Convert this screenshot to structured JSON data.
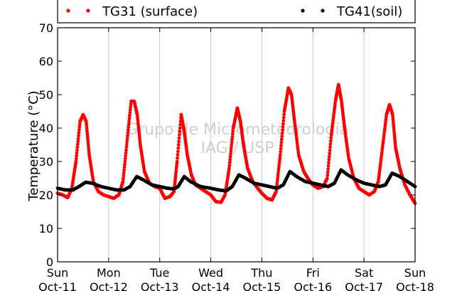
{
  "chart_data": {
    "type": "scatter",
    "ylabel": "Temperature (°C)",
    "xlabel": "",
    "ylim": [
      0,
      70
    ],
    "xlim": [
      "Oct-11",
      "Oct-18"
    ],
    "yticks": [
      0,
      10,
      20,
      30,
      40,
      50,
      60,
      70
    ],
    "xticks": [
      {
        "day": "Sun",
        "date": "Oct-11"
      },
      {
        "day": "Mon",
        "date": "Oct-12"
      },
      {
        "day": "Tue",
        "date": "Oct-13"
      },
      {
        "day": "Wed",
        "date": "Oct-14"
      },
      {
        "day": "Thu",
        "date": "Oct-15"
      },
      {
        "day": "Fri",
        "date": "Oct-16"
      },
      {
        "day": "Sat",
        "date": "Oct-17"
      },
      {
        "day": "Sun",
        "date": "Oct-18"
      }
    ],
    "grid": "vertical",
    "legend_position": "top",
    "watermark": [
      "Grupo de Micrometeorologia",
      "IAG / USP"
    ],
    "series": [
      {
        "name": "TG31 (surface)",
        "color": "#ff0000",
        "x_unit": "day",
        "points": [
          [
            0.0,
            20.5
          ],
          [
            0.1,
            20.0
          ],
          [
            0.2,
            19.2
          ],
          [
            0.28,
            22.0
          ],
          [
            0.36,
            30.0
          ],
          [
            0.44,
            42.0
          ],
          [
            0.5,
            44.0
          ],
          [
            0.56,
            42.0
          ],
          [
            0.62,
            32.0
          ],
          [
            0.7,
            24.0
          ],
          [
            0.8,
            21.0
          ],
          [
            0.9,
            20.0
          ],
          [
            1.0,
            19.5
          ],
          [
            1.1,
            19.0
          ],
          [
            1.2,
            20.0
          ],
          [
            1.28,
            24.0
          ],
          [
            1.36,
            36.0
          ],
          [
            1.44,
            48.0
          ],
          [
            1.5,
            48.0
          ],
          [
            1.56,
            44.0
          ],
          [
            1.62,
            35.0
          ],
          [
            1.7,
            27.0
          ],
          [
            1.8,
            23.5
          ],
          [
            1.9,
            22.5
          ],
          [
            2.0,
            22.0
          ],
          [
            2.1,
            19.0
          ],
          [
            2.2,
            19.5
          ],
          [
            2.28,
            21.0
          ],
          [
            2.34,
            30.0
          ],
          [
            2.42,
            44.0
          ],
          [
            2.48,
            39.0
          ],
          [
            2.54,
            32.0
          ],
          [
            2.62,
            26.0
          ],
          [
            2.7,
            23.0
          ],
          [
            2.8,
            22.0
          ],
          [
            2.9,
            21.0
          ],
          [
            3.0,
            20.0
          ],
          [
            3.1,
            18.0
          ],
          [
            3.2,
            17.8
          ],
          [
            3.28,
            20.0
          ],
          [
            3.36,
            28.0
          ],
          [
            3.44,
            40.0
          ],
          [
            3.52,
            46.0
          ],
          [
            3.58,
            42.0
          ],
          [
            3.64,
            35.0
          ],
          [
            3.72,
            28.0
          ],
          [
            3.82,
            24.0
          ],
          [
            3.92,
            22.0
          ],
          [
            4.0,
            20.5
          ],
          [
            4.1,
            19.0
          ],
          [
            4.2,
            18.5
          ],
          [
            4.28,
            21.0
          ],
          [
            4.36,
            32.0
          ],
          [
            4.44,
            45.0
          ],
          [
            4.52,
            52.0
          ],
          [
            4.58,
            50.0
          ],
          [
            4.64,
            42.0
          ],
          [
            4.72,
            32.0
          ],
          [
            4.82,
            27.0
          ],
          [
            4.92,
            24.5
          ],
          [
            5.0,
            23.0
          ],
          [
            5.1,
            22.0
          ],
          [
            5.2,
            22.5
          ],
          [
            5.28,
            25.0
          ],
          [
            5.36,
            38.0
          ],
          [
            5.44,
            48.0
          ],
          [
            5.5,
            53.0
          ],
          [
            5.56,
            48.0
          ],
          [
            5.62,
            40.0
          ],
          [
            5.7,
            31.0
          ],
          [
            5.8,
            25.0
          ],
          [
            5.9,
            22.0
          ],
          [
            6.0,
            21.0
          ],
          [
            6.1,
            20.0
          ],
          [
            6.2,
            21.0
          ],
          [
            6.28,
            24.0
          ],
          [
            6.36,
            34.0
          ],
          [
            6.44,
            44.0
          ],
          [
            6.5,
            47.0
          ],
          [
            6.56,
            44.0
          ],
          [
            6.62,
            34.0
          ],
          [
            6.7,
            28.0
          ],
          [
            6.8,
            23.0
          ],
          [
            6.9,
            20.0
          ],
          [
            7.0,
            17.5
          ]
        ]
      },
      {
        "name": "TG41(soil)",
        "color": "#000000",
        "x_unit": "day",
        "points": [
          [
            0.0,
            22.0
          ],
          [
            0.15,
            21.5
          ],
          [
            0.3,
            21.5
          ],
          [
            0.42,
            22.5
          ],
          [
            0.55,
            23.8
          ],
          [
            0.68,
            23.5
          ],
          [
            0.85,
            22.5
          ],
          [
            1.0,
            22.0
          ],
          [
            1.15,
            21.5
          ],
          [
            1.3,
            21.5
          ],
          [
            1.42,
            22.5
          ],
          [
            1.55,
            25.5
          ],
          [
            1.68,
            24.5
          ],
          [
            1.85,
            23.0
          ],
          [
            2.0,
            22.5
          ],
          [
            2.15,
            22.0
          ],
          [
            2.28,
            21.8
          ],
          [
            2.36,
            22.5
          ],
          [
            2.48,
            25.5
          ],
          [
            2.6,
            24.0
          ],
          [
            2.8,
            22.5
          ],
          [
            3.0,
            22.0
          ],
          [
            3.15,
            21.5
          ],
          [
            3.3,
            21.2
          ],
          [
            3.42,
            22.5
          ],
          [
            3.55,
            26.0
          ],
          [
            3.68,
            25.0
          ],
          [
            3.85,
            23.5
          ],
          [
            4.0,
            23.0
          ],
          [
            4.15,
            22.5
          ],
          [
            4.3,
            22.0
          ],
          [
            4.42,
            23.0
          ],
          [
            4.55,
            27.0
          ],
          [
            4.68,
            25.5
          ],
          [
            4.85,
            24.0
          ],
          [
            5.0,
            23.5
          ],
          [
            5.15,
            23.0
          ],
          [
            5.3,
            22.5
          ],
          [
            5.42,
            23.5
          ],
          [
            5.55,
            27.5
          ],
          [
            5.68,
            26.0
          ],
          [
            5.85,
            24.5
          ],
          [
            6.0,
            23.5
          ],
          [
            6.15,
            23.0
          ],
          [
            6.3,
            22.5
          ],
          [
            6.42,
            23.0
          ],
          [
            6.55,
            26.5
          ],
          [
            6.7,
            25.5
          ],
          [
            6.85,
            24.0
          ],
          [
            7.0,
            22.5
          ]
        ]
      }
    ]
  }
}
